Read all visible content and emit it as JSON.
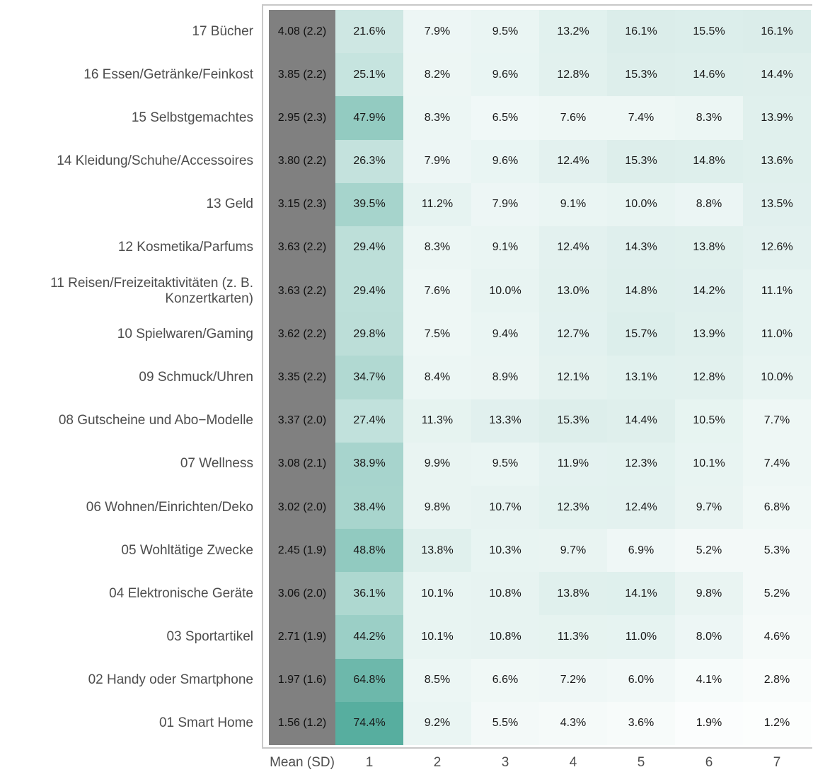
{
  "chart_data": {
    "type": "heatmap",
    "mean_label": "Mean (SD)",
    "columns": [
      "1",
      "2",
      "3",
      "4",
      "5",
      "6",
      "7"
    ],
    "categories": [
      "17 Bücher",
      "16 Essen/Getränke/Feinkost",
      "15 Selbstgemachtes",
      "14 Kleidung/Schuhe/Accessoires",
      "13 Geld",
      "12 Kosmetika/Parfums",
      "11 Reisen/Freizeitaktivitäten (z. B.\nKonzertkarten)",
      "10 Spielwaren/Gaming",
      "09 Schmuck/Uhren",
      "08 Gutscheine und Abo−Modelle",
      "07 Wellness",
      "06 Wohnen/Einrichten/Deko",
      "05 Wohltätige Zwecke",
      "04 Elektronische Geräte",
      "03 Sportartikel",
      "02 Handy oder Smartphone",
      "01 Smart Home"
    ],
    "mean_sd": [
      "4.08 (2.2)",
      "3.85 (2.2)",
      "2.95 (2.3)",
      "3.80 (2.2)",
      "3.15 (2.3)",
      "3.63 (2.2)",
      "3.63 (2.2)",
      "3.62 (2.2)",
      "3.35 (2.2)",
      "3.37 (2.0)",
      "3.08 (2.1)",
      "3.02 (2.0)",
      "2.45 (1.9)",
      "3.06 (2.0)",
      "2.71 (1.9)",
      "1.97 (1.6)",
      "1.56 (1.2)"
    ],
    "values": [
      [
        21.6,
        7.9,
        9.5,
        13.2,
        16.1,
        15.5,
        16.1
      ],
      [
        25.1,
        8.2,
        9.6,
        12.8,
        15.3,
        14.6,
        14.4
      ],
      [
        47.9,
        8.3,
        6.5,
        7.6,
        7.4,
        8.3,
        13.9
      ],
      [
        26.3,
        7.9,
        9.6,
        12.4,
        15.3,
        14.8,
        13.6
      ],
      [
        39.5,
        11.2,
        7.9,
        9.1,
        10.0,
        8.8,
        13.5
      ],
      [
        29.4,
        8.3,
        9.1,
        12.4,
        14.3,
        13.8,
        12.6
      ],
      [
        29.4,
        7.6,
        10.0,
        13.0,
        14.8,
        14.2,
        11.1
      ],
      [
        29.8,
        7.5,
        9.4,
        12.7,
        15.7,
        13.9,
        11.0
      ],
      [
        34.7,
        8.4,
        8.9,
        12.1,
        13.1,
        12.8,
        10.0
      ],
      [
        27.4,
        11.3,
        13.3,
        15.3,
        14.4,
        10.5,
        7.7
      ],
      [
        38.9,
        9.9,
        9.5,
        11.9,
        12.3,
        10.1,
        7.4
      ],
      [
        38.4,
        9.8,
        10.7,
        12.3,
        12.4,
        9.7,
        6.8
      ],
      [
        48.8,
        13.8,
        10.3,
        9.7,
        6.9,
        5.2,
        5.3
      ],
      [
        36.1,
        10.1,
        10.8,
        13.8,
        14.1,
        9.8,
        5.2
      ],
      [
        44.2,
        10.1,
        10.8,
        11.3,
        11.0,
        8.0,
        4.6
      ],
      [
        64.8,
        8.5,
        6.6,
        7.2,
        6.0,
        4.1,
        2.8
      ],
      [
        74.4,
        9.2,
        5.5,
        4.3,
        3.6,
        1.9,
        1.2
      ]
    ],
    "value_labels": [
      [
        "21.6%",
        "7.9%",
        "9.5%",
        "13.2%",
        "16.1%",
        "15.5%",
        "16.1%"
      ],
      [
        "25.1%",
        "8.2%",
        "9.6%",
        "12.8%",
        "15.3%",
        "14.6%",
        "14.4%"
      ],
      [
        "47.9%",
        "8.3%",
        "6.5%",
        "7.6%",
        "7.4%",
        "8.3%",
        "13.9%"
      ],
      [
        "26.3%",
        "7.9%",
        "9.6%",
        "12.4%",
        "15.3%",
        "14.8%",
        "13.6%"
      ],
      [
        "39.5%",
        "11.2%",
        "7.9%",
        "9.1%",
        "10.0%",
        "8.8%",
        "13.5%"
      ],
      [
        "29.4%",
        "8.3%",
        "9.1%",
        "12.4%",
        "14.3%",
        "13.8%",
        "12.6%"
      ],
      [
        "29.4%",
        "7.6%",
        "10.0%",
        "13.0%",
        "14.8%",
        "14.2%",
        "11.1%"
      ],
      [
        "29.8%",
        "7.5%",
        "9.4%",
        "12.7%",
        "15.7%",
        "13.9%",
        "11.0%"
      ],
      [
        "34.7%",
        "8.4%",
        "8.9%",
        "12.1%",
        "13.1%",
        "12.8%",
        "10.0%"
      ],
      [
        "27.4%",
        "11.3%",
        "13.3%",
        "15.3%",
        "14.4%",
        "10.5%",
        "7.7%"
      ],
      [
        "38.9%",
        "9.9%",
        "9.5%",
        "11.9%",
        "12.3%",
        "10.1%",
        "7.4%"
      ],
      [
        "38.4%",
        "9.8%",
        "10.7%",
        "12.3%",
        "12.4%",
        "9.7%",
        "6.8%"
      ],
      [
        "48.8%",
        "13.8%",
        "10.3%",
        "9.7%",
        "6.9%",
        "5.2%",
        "5.3%"
      ],
      [
        "36.1%",
        "10.1%",
        "10.8%",
        "13.8%",
        "14.1%",
        "9.8%",
        "5.2%"
      ],
      [
        "44.2%",
        "10.1%",
        "10.8%",
        "11.3%",
        "11.0%",
        "8.0%",
        "4.6%"
      ],
      [
        "64.8%",
        "8.5%",
        "6.6%",
        "7.2%",
        "6.0%",
        "4.1%",
        "2.8%"
      ],
      [
        "74.4%",
        "9.2%",
        "5.5%",
        "4.3%",
        "3.6%",
        "1.9%",
        "1.2%"
      ]
    ],
    "clim": [
      0,
      75
    ],
    "color_range": [
      "#ffffff",
      "#56ad9e"
    ],
    "mean_color": "#808080"
  }
}
